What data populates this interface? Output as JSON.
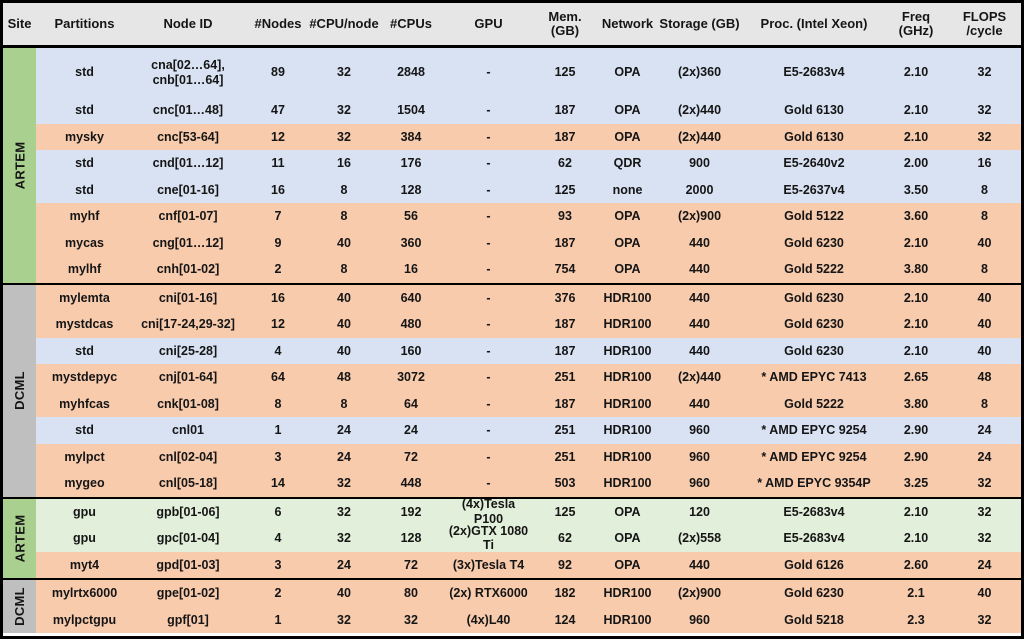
{
  "colors": {
    "header_bg": "#e7e6e6",
    "row_blue": "#d9e2f3",
    "row_orange": "#f8cbad",
    "row_green": "#e2efda",
    "site_artem_green": "#a9d08e",
    "site_dcml_gray": "#bfbfbf",
    "border_black": "#000000"
  },
  "table": {
    "columns": [
      {
        "key": "site",
        "label": "Site"
      },
      {
        "key": "partitions",
        "label": "Partitions"
      },
      {
        "key": "node_id",
        "label": "Node ID"
      },
      {
        "key": "nodes",
        "label": "#Nodes"
      },
      {
        "key": "cpu_per_node",
        "label": "#CPU/node"
      },
      {
        "key": "cpus",
        "label": "#CPUs"
      },
      {
        "key": "gpu",
        "label": "GPU"
      },
      {
        "key": "mem",
        "label": "Mem.\n(GB)"
      },
      {
        "key": "network",
        "label": "Network"
      },
      {
        "key": "storage",
        "label": "Storage (GB)"
      },
      {
        "key": "proc",
        "label": "Proc. (Intel Xeon)"
      },
      {
        "key": "freq",
        "label": "Freq (GHz)"
      },
      {
        "key": "flops",
        "label": "FLOPS\n/cycle"
      }
    ],
    "sections": [
      {
        "site": "ARTEM",
        "site_color": "green",
        "rows": [
          {
            "partition": "std",
            "node_id": "cna[02…64],\ncnb[01…64]",
            "nodes": "89",
            "cpu_per_node": "32",
            "cpus": "2848",
            "gpu": "-",
            "mem": "125",
            "network": "OPA",
            "storage": "(2x)360",
            "proc": "E5-2683v4",
            "freq": "2.10",
            "flops": "32",
            "bg": "blue",
            "tall": true
          },
          {
            "partition": "std",
            "node_id": "cnc[01…48]",
            "nodes": "47",
            "cpu_per_node": "32",
            "cpus": "1504",
            "gpu": "-",
            "mem": "187",
            "network": "OPA",
            "storage": "(2x)440",
            "proc": "Gold 6130",
            "freq": "2.10",
            "flops": "32",
            "bg": "blue"
          },
          {
            "partition": "mysky",
            "node_id": "cnc[53-64]",
            "nodes": "12",
            "cpu_per_node": "32",
            "cpus": "384",
            "gpu": "-",
            "mem": "187",
            "network": "OPA",
            "storage": "(2x)440",
            "proc": "Gold 6130",
            "freq": "2.10",
            "flops": "32",
            "bg": "orange"
          },
          {
            "partition": "std",
            "node_id": "cnd[01…12]",
            "nodes": "11",
            "cpu_per_node": "16",
            "cpus": "176",
            "gpu": "-",
            "mem": "62",
            "network": "QDR",
            "storage": "900",
            "proc": "E5-2640v2",
            "freq": "2.00",
            "flops": "16",
            "bg": "blue"
          },
          {
            "partition": "std",
            "node_id": "cne[01-16]",
            "nodes": "16",
            "cpu_per_node": "8",
            "cpus": "128",
            "gpu": "-",
            "mem": "125",
            "network": "none",
            "storage": "2000",
            "proc": "E5-2637v4",
            "freq": "3.50",
            "flops": "8",
            "bg": "blue"
          },
          {
            "partition": "myhf",
            "node_id": "cnf[01-07]",
            "nodes": "7",
            "cpu_per_node": "8",
            "cpus": "56",
            "gpu": "-",
            "mem": "93",
            "network": "OPA",
            "storage": "(2x)900",
            "proc": "Gold 5122",
            "freq": "3.60",
            "flops": "8",
            "bg": "orange"
          },
          {
            "partition": "mycas",
            "node_id": "cng[01…12]",
            "nodes": "9",
            "cpu_per_node": "40",
            "cpus": "360",
            "gpu": "-",
            "mem": "187",
            "network": "OPA",
            "storage": "440",
            "proc": "Gold 6230",
            "freq": "2.10",
            "flops": "40",
            "bg": "orange"
          },
          {
            "partition": "mylhf",
            "node_id": "cnh[01-02]",
            "nodes": "2",
            "cpu_per_node": "8",
            "cpus": "16",
            "gpu": "-",
            "mem": "754",
            "network": "OPA",
            "storage": "440",
            "proc": "Gold 5222",
            "freq": "3.80",
            "flops": "8",
            "bg": "orange"
          }
        ]
      },
      {
        "site": "DCML",
        "site_color": "gray",
        "rows": [
          {
            "partition": "mylemta",
            "node_id": "cni[01-16]",
            "nodes": "16",
            "cpu_per_node": "40",
            "cpus": "640",
            "gpu": "-",
            "mem": "376",
            "network": "HDR100",
            "storage": "440",
            "proc": "Gold 6230",
            "freq": "2.10",
            "flops": "40",
            "bg": "orange"
          },
          {
            "partition": "mystdcas",
            "node_id": "cni[17-24,29-32]",
            "nodes": "12",
            "cpu_per_node": "40",
            "cpus": "480",
            "gpu": "-",
            "mem": "187",
            "network": "HDR100",
            "storage": "440",
            "proc": "Gold 6230",
            "freq": "2.10",
            "flops": "40",
            "bg": "orange"
          },
          {
            "partition": "std",
            "node_id": "cni[25-28]",
            "nodes": "4",
            "cpu_per_node": "40",
            "cpus": "160",
            "gpu": "-",
            "mem": "187",
            "network": "HDR100",
            "storage": "440",
            "proc": "Gold 6230",
            "freq": "2.10",
            "flops": "40",
            "bg": "blue"
          },
          {
            "partition": "mystdepyc",
            "node_id": "cnj[01-64]",
            "nodes": "64",
            "cpu_per_node": "48",
            "cpus": "3072",
            "gpu": "-",
            "mem": "251",
            "network": "HDR100",
            "storage": "(2x)440",
            "proc": "* AMD EPYC 7413",
            "freq": "2.65",
            "flops": "48",
            "bg": "orange"
          },
          {
            "partition": "myhfcas",
            "node_id": "cnk[01-08]",
            "nodes": "8",
            "cpu_per_node": "8",
            "cpus": "64",
            "gpu": "-",
            "mem": "187",
            "network": "HDR100",
            "storage": "440",
            "proc": "Gold 5222",
            "freq": "3.80",
            "flops": "8",
            "bg": "orange"
          },
          {
            "partition": "std",
            "node_id": "cnl01",
            "nodes": "1",
            "cpu_per_node": "24",
            "cpus": "24",
            "gpu": "-",
            "mem": "251",
            "network": "HDR100",
            "storage": "960",
            "proc": "* AMD EPYC 9254",
            "freq": "2.90",
            "flops": "24",
            "bg": "blue"
          },
          {
            "partition": "mylpct",
            "node_id": "cnl[02-04]",
            "nodes": "3",
            "cpu_per_node": "24",
            "cpus": "72",
            "gpu": "-",
            "mem": "251",
            "network": "HDR100",
            "storage": "960",
            "proc": "* AMD EPYC 9254",
            "freq": "2.90",
            "flops": "24",
            "bg": "orange"
          },
          {
            "partition": "mygeo",
            "node_id": "cnl[05-18]",
            "nodes": "14",
            "cpu_per_node": "32",
            "cpus": "448",
            "gpu": "-",
            "mem": "503",
            "network": "HDR100",
            "storage": "960",
            "proc": "* AMD EPYC 9354P",
            "freq": "3.25",
            "flops": "32",
            "bg": "orange"
          }
        ]
      },
      {
        "site": "ARTEM",
        "site_color": "green",
        "rows": [
          {
            "partition": "gpu",
            "node_id": "gpb[01-06]",
            "nodes": "6",
            "cpu_per_node": "32",
            "cpus": "192",
            "gpu": "(4x)Tesla P100",
            "mem": "125",
            "network": "OPA",
            "storage": "120",
            "proc": "E5-2683v4",
            "freq": "2.10",
            "flops": "32",
            "bg": "green"
          },
          {
            "partition": "gpu",
            "node_id": "gpc[01-04]",
            "nodes": "4",
            "cpu_per_node": "32",
            "cpus": "128",
            "gpu": "(2x)GTX 1080 Ti",
            "mem": "62",
            "network": "OPA",
            "storage": "(2x)558",
            "proc": "E5-2683v4",
            "freq": "2.10",
            "flops": "32",
            "bg": "green"
          },
          {
            "partition": "myt4",
            "node_id": "gpd[01-03]",
            "nodes": "3",
            "cpu_per_node": "24",
            "cpus": "72",
            "gpu": "(3x)Tesla T4",
            "mem": "92",
            "network": "OPA",
            "storage": "440",
            "proc": "Gold 6126",
            "freq": "2.60",
            "flops": "24",
            "bg": "orange"
          }
        ]
      },
      {
        "site": "DCML",
        "site_color": "gray",
        "rows": [
          {
            "partition": "mylrtx6000",
            "node_id": "gpe[01-02]",
            "nodes": "2",
            "cpu_per_node": "40",
            "cpus": "80",
            "gpu": "(2x) RTX6000",
            "mem": "182",
            "network": "HDR100",
            "storage": "(2x)900",
            "proc": "Gold 6230",
            "freq": "2.1",
            "flops": "40",
            "bg": "orange"
          },
          {
            "partition": "mylpctgpu",
            "node_id": "gpf[01]",
            "nodes": "1",
            "cpu_per_node": "32",
            "cpus": "32",
            "gpu": "(4x)L40",
            "mem": "124",
            "network": "HDR100",
            "storage": "960",
            "proc": "Gold 5218",
            "freq": "2.3",
            "flops": "32",
            "bg": "orange"
          }
        ]
      }
    ]
  }
}
